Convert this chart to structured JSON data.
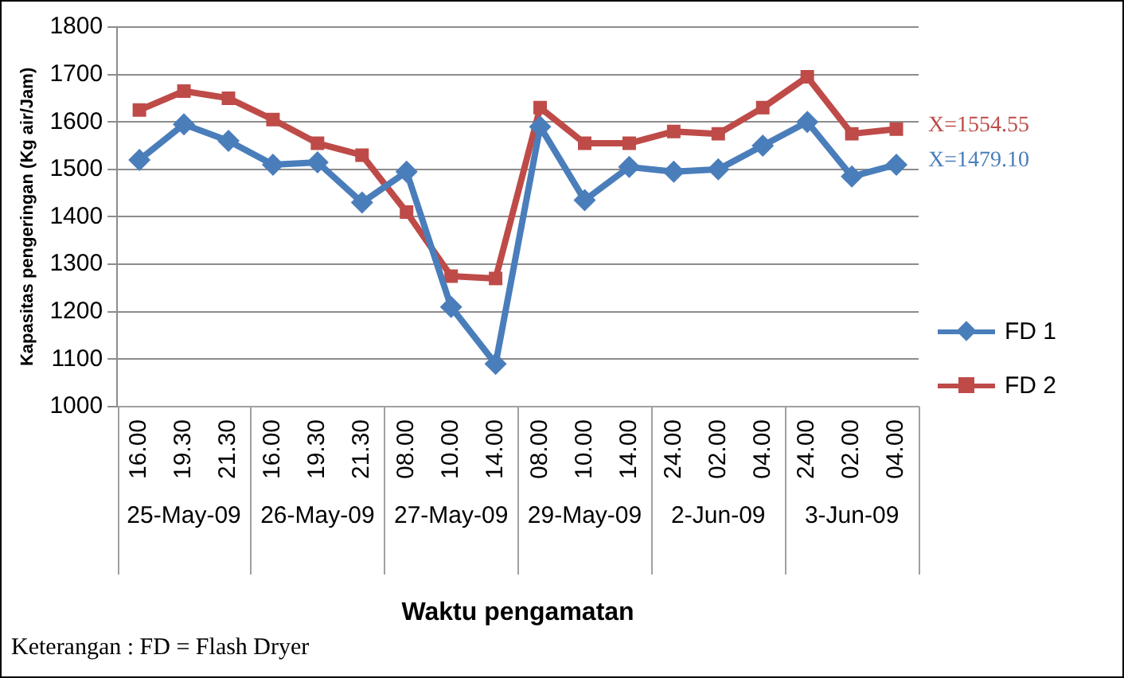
{
  "chart_data": {
    "type": "line",
    "xlabel": "Waktu pengamatan",
    "ylabel": "Kapasitas pengeringan (Kg air/Jam)",
    "categories": [
      "16.00",
      "19.30",
      "21.30",
      "16.00",
      "19.30",
      "21.30",
      "08.00",
      "10.00",
      "14.00",
      "08.00",
      "10.00",
      "14.00",
      "24.00",
      "02.00",
      "04.00",
      "24.00",
      "02.00",
      "04.00"
    ],
    "series": [
      {
        "name": "FD 1",
        "color": "#4a7ebb",
        "marker": "diamond",
        "values": [
          1520,
          1595,
          1560,
          1510,
          1515,
          1430,
          1495,
          1210,
          1090,
          1590,
          1435,
          1505,
          1495,
          1500,
          1550,
          1600,
          1485,
          1510
        ]
      },
      {
        "name": "FD 2",
        "color": "#be4b48",
        "marker": "square",
        "values": [
          1625,
          1665,
          1650,
          1605,
          1555,
          1530,
          1410,
          1275,
          1270,
          1630,
          1555,
          1555,
          1580,
          1575,
          1630,
          1695,
          1575,
          1585
        ]
      }
    ],
    "ylim": [
      1000,
      1800
    ],
    "yticks": [
      1000,
      1100,
      1200,
      1300,
      1400,
      1500,
      1600,
      1700,
      1800
    ],
    "grid": "y",
    "legend": "right",
    "line_style": "solid",
    "annotations": [
      "X=1554.55",
      "X=1479.10",
      "25-May-09",
      "26-May-09",
      "27-May-09",
      "29-May-09",
      "2-Jun-09",
      "3-Jun-09",
      "Keterangan : FD = Flash Dryer"
    ]
  }
}
